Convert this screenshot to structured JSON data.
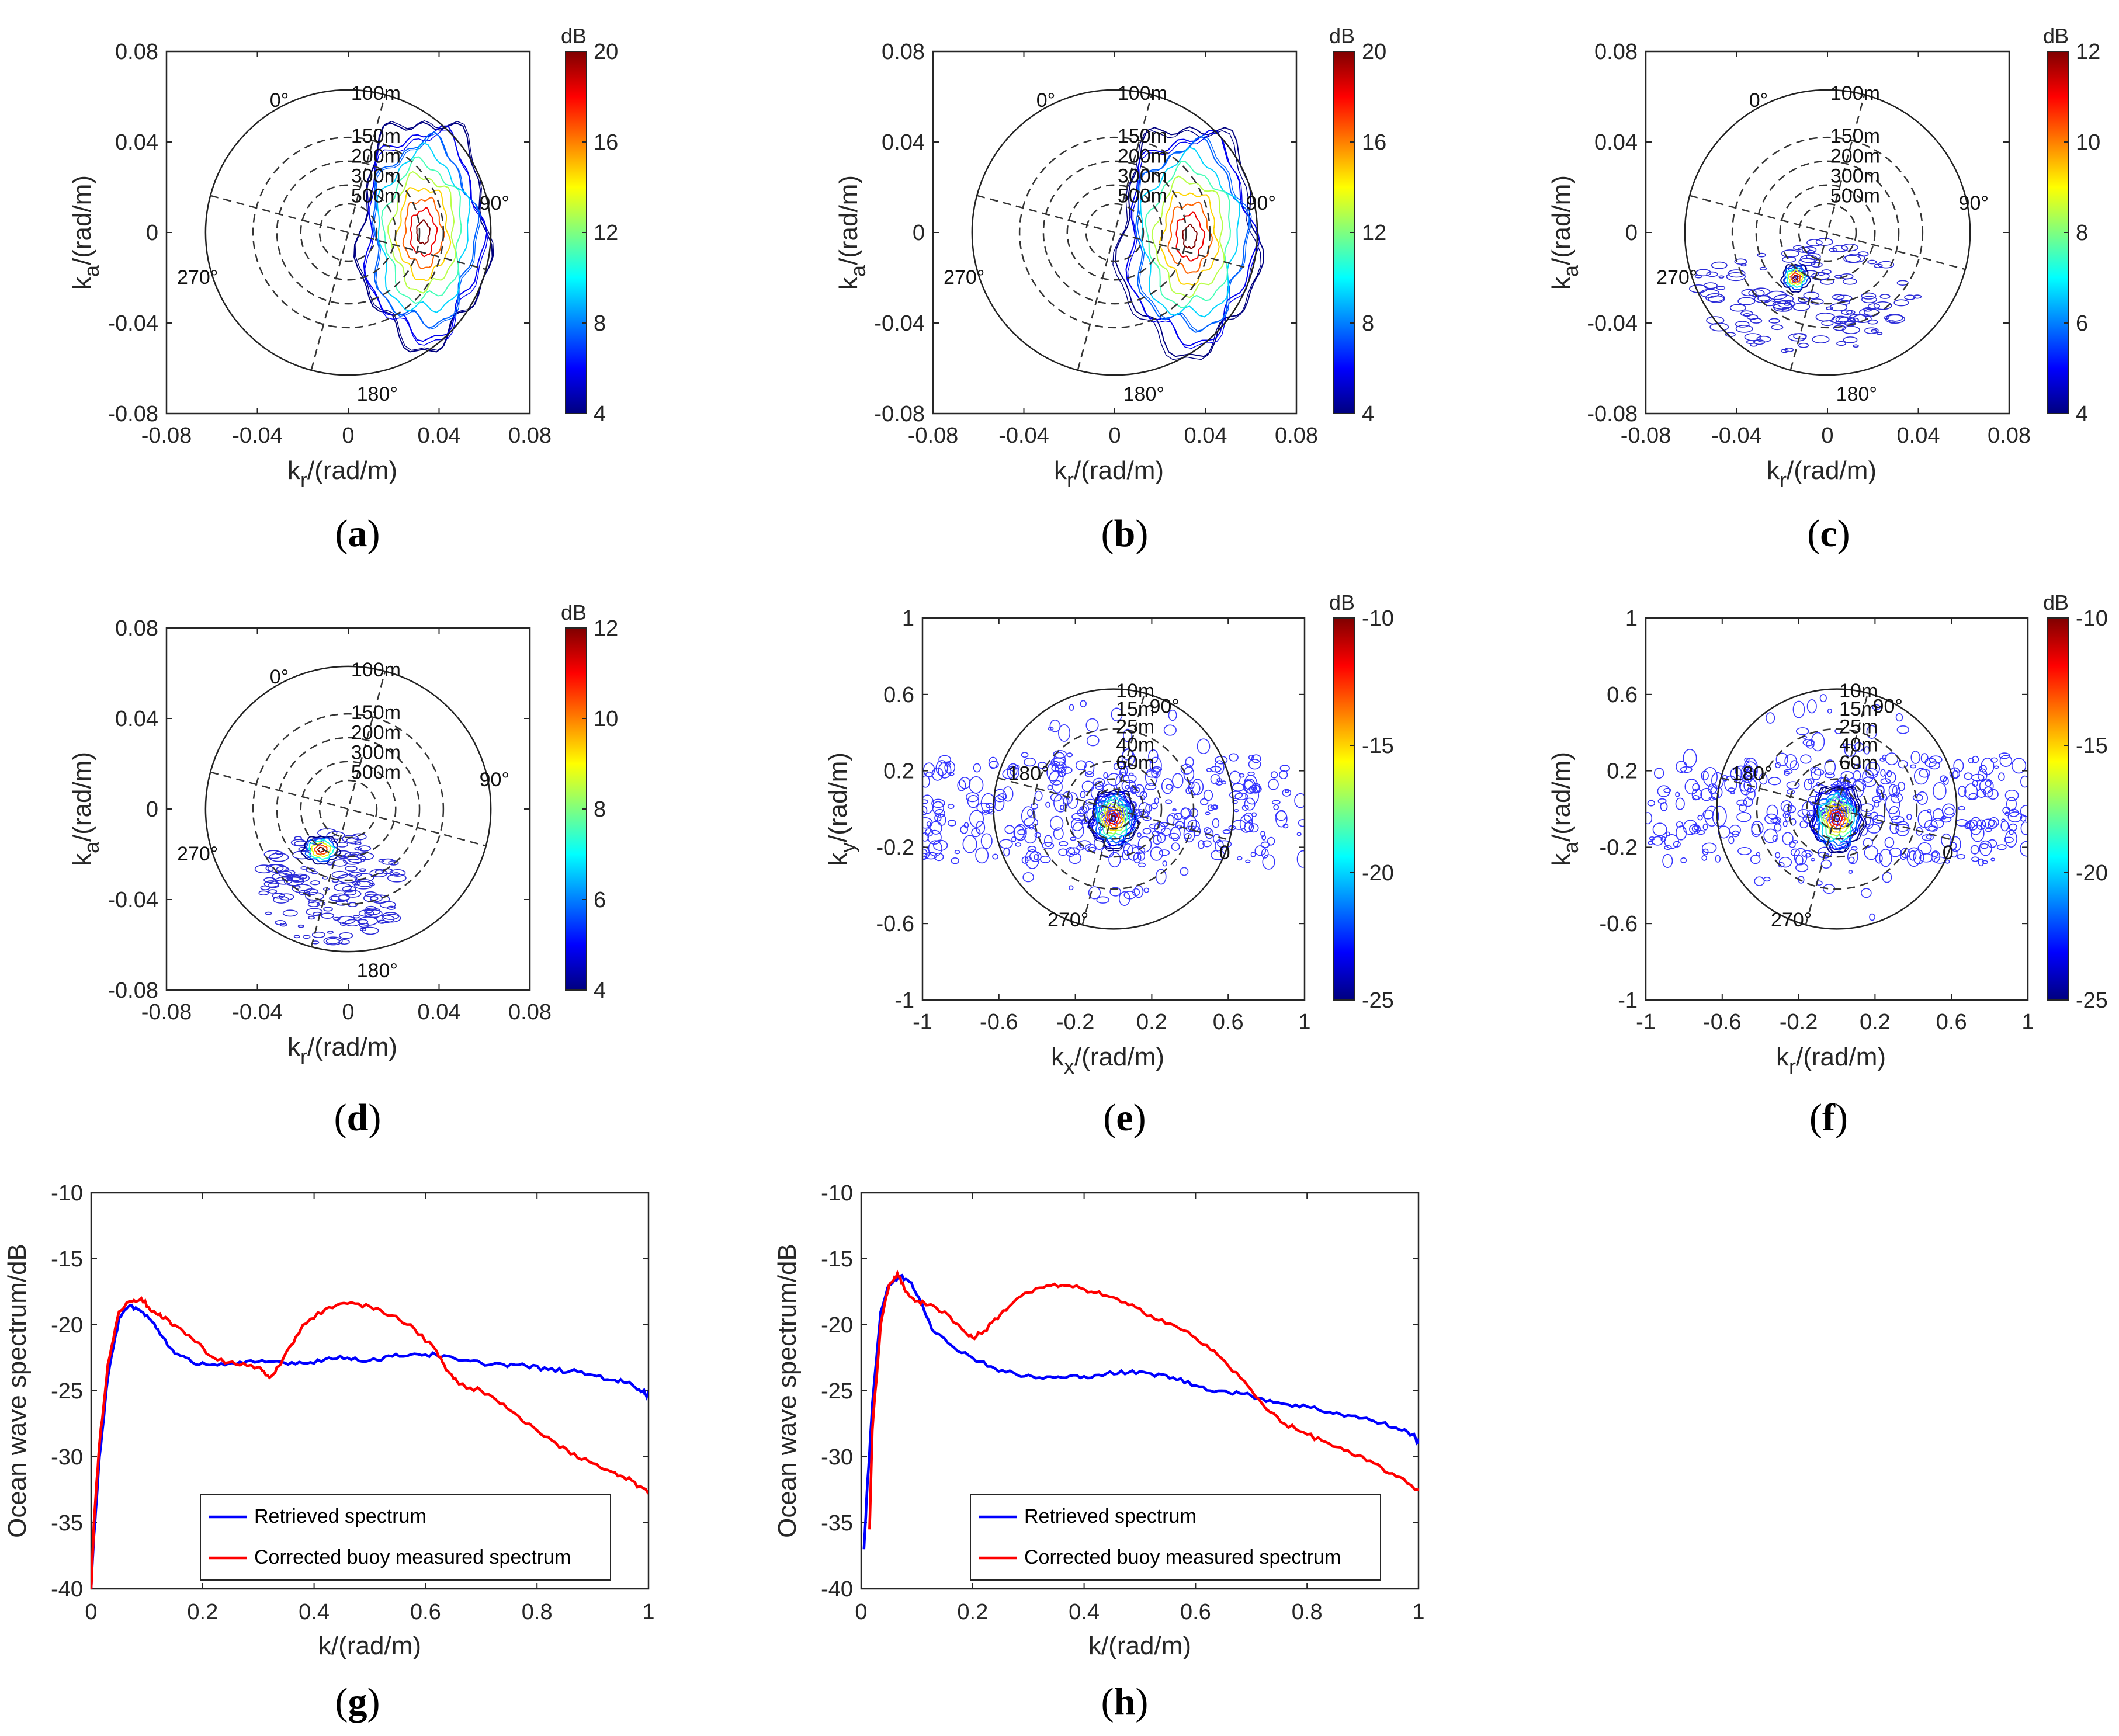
{
  "figure": {
    "colormap": [
      "#00007f",
      "#0000ff",
      "#007fff",
      "#00ffff",
      "#7fff7f",
      "#ffff00",
      "#ff7f00",
      "#ff0000",
      "#7f0000"
    ]
  },
  "chart_data": [
    {
      "id": "a",
      "type": "contour",
      "label_letter": "a",
      "xlabel_main": "k",
      "xlabel_sub": "r",
      "xlabel_tail": "/(rad/m)",
      "ylabel_main": "k",
      "ylabel_sub": "a",
      "ylabel_tail": "/(rad/m)",
      "xlim": [
        -0.08,
        0.08
      ],
      "ylim": [
        -0.08,
        0.08
      ],
      "xticks": [
        "-0.08",
        "-0.04",
        "0",
        "0.04",
        "0.08"
      ],
      "yticks": [
        "0.08",
        "0.04",
        "0",
        "-0.04",
        "-0.08"
      ],
      "colorbar": {
        "unit": "dB",
        "min": 4,
        "max": 20,
        "ticks": [
          "20",
          "16",
          "12",
          "8",
          "4"
        ]
      },
      "polar": {
        "outer_radius": 0.0628,
        "rings": [
          0.0419,
          0.0314,
          0.0209,
          0.0126
        ],
        "ring_labels": [
          "100m",
          "150m",
          "200m",
          "300m",
          "500m"
        ],
        "angle_labels": [
          "0°",
          "90°",
          "180°",
          "270°"
        ],
        "rotation_deg": 15
      },
      "blob": {
        "cx": 0.033,
        "cy": 0.0,
        "rx": 0.028,
        "ry": 0.05,
        "peak_db": 20
      }
    },
    {
      "id": "b",
      "type": "contour",
      "label_letter": "b",
      "xlabel_main": "k",
      "xlabel_sub": "r",
      "xlabel_tail": "/(rad/m)",
      "ylabel_main": "k",
      "ylabel_sub": "a",
      "ylabel_tail": "/(rad/m)",
      "xlim": [
        -0.08,
        0.08
      ],
      "ylim": [
        -0.08,
        0.08
      ],
      "xticks": [
        "-0.08",
        "-0.04",
        "0",
        "0.04",
        "0.08"
      ],
      "yticks": [
        "0.08",
        "0.04",
        "0",
        "-0.04",
        "-0.08"
      ],
      "colorbar": {
        "unit": "dB",
        "min": 4,
        "max": 20,
        "ticks": [
          "20",
          "16",
          "12",
          "8",
          "4"
        ]
      },
      "polar": {
        "outer_radius": 0.0628,
        "rings": [
          0.0419,
          0.0314,
          0.0209,
          0.0126
        ],
        "ring_labels": [
          "100m",
          "150m",
          "200m",
          "300m",
          "500m"
        ],
        "angle_labels": [
          "0°",
          "90°",
          "180°",
          "270°"
        ],
        "rotation_deg": 15
      },
      "blob": {
        "cx": 0.033,
        "cy": -0.002,
        "rx": 0.03,
        "ry": 0.05,
        "peak_db": 20
      }
    },
    {
      "id": "c",
      "type": "contour",
      "label_letter": "c",
      "xlabel_main": "k",
      "xlabel_sub": "r",
      "xlabel_tail": "/(rad/m)",
      "ylabel_main": "k",
      "ylabel_sub": "a",
      "ylabel_tail": "/(rad/m)",
      "xlim": [
        -0.08,
        0.08
      ],
      "ylim": [
        -0.08,
        0.08
      ],
      "xticks": [
        "-0.08",
        "-0.04",
        "0",
        "0.04",
        "0.08"
      ],
      "yticks": [
        "0.08",
        "0.04",
        "0",
        "-0.04",
        "-0.08"
      ],
      "colorbar": {
        "unit": "dB",
        "min": 4,
        "max": 12,
        "ticks": [
          "12",
          "10",
          "8",
          "6",
          "4"
        ]
      },
      "polar": {
        "outer_radius": 0.0628,
        "rings": [
          0.0419,
          0.0314,
          0.0209,
          0.0126
        ],
        "ring_labels": [
          "100m",
          "150m",
          "200m",
          "300m",
          "500m"
        ],
        "angle_labels": [
          "0°",
          "90°",
          "180°",
          "270°"
        ],
        "rotation_deg": 15
      },
      "blob": {
        "cx": -0.014,
        "cy": -0.02,
        "rx": 0.006,
        "ry": 0.006,
        "peak_db": 12,
        "spread": {
          "cx": -0.01,
          "cy": -0.028,
          "rx": 0.05,
          "ry": 0.025
        }
      }
    },
    {
      "id": "d",
      "type": "contour",
      "label_letter": "d",
      "xlabel_main": "k",
      "xlabel_sub": "r",
      "xlabel_tail": "/(rad/m)",
      "ylabel_main": "k",
      "ylabel_sub": "a",
      "ylabel_tail": "/(rad/m)",
      "xlim": [
        -0.08,
        0.08
      ],
      "ylim": [
        -0.08,
        0.08
      ],
      "xticks": [
        "-0.08",
        "-0.04",
        "0",
        "0.04",
        "0.08"
      ],
      "yticks": [
        "0.08",
        "0.04",
        "0",
        "-0.04",
        "-0.08"
      ],
      "colorbar": {
        "unit": "dB",
        "min": 4,
        "max": 12,
        "ticks": [
          "12",
          "10",
          "8",
          "6",
          "4"
        ]
      },
      "polar": {
        "outer_radius": 0.0628,
        "rings": [
          0.0419,
          0.0314,
          0.0209,
          0.0126
        ],
        "ring_labels": [
          "100m",
          "150m",
          "200m",
          "300m",
          "500m"
        ],
        "angle_labels": [
          "0°",
          "90°",
          "180°",
          "270°"
        ],
        "rotation_deg": 15
      },
      "blob": {
        "cx": -0.012,
        "cy": -0.018,
        "rx": 0.008,
        "ry": 0.006,
        "peak_db": 12,
        "spread": {
          "cx": -0.008,
          "cy": -0.035,
          "rx": 0.032,
          "ry": 0.025
        }
      }
    },
    {
      "id": "e",
      "type": "contour",
      "label_letter": "e",
      "xlabel_main": "k",
      "xlabel_sub": "x",
      "xlabel_tail": "/(rad/m)",
      "ylabel_main": "k",
      "ylabel_sub": "y",
      "ylabel_tail": "/(rad/m)",
      "xlim": [
        -1,
        1
      ],
      "ylim": [
        -1,
        1
      ],
      "xticks": [
        "-1",
        "-0.6",
        "-0.2",
        "0.2",
        "0.6",
        "1"
      ],
      "yticks": [
        "1",
        "0.6",
        "0.2",
        "-0.2",
        "-0.6",
        "-1"
      ],
      "colorbar": {
        "unit": "dB",
        "min": -25,
        "max": -10,
        "ticks": [
          "-10",
          "-15",
          "-20",
          "-25"
        ]
      },
      "polar": {
        "outer_radius": 0.628,
        "rings": [
          0.419,
          0.251,
          0.157,
          0.105
        ],
        "ring_labels": [
          "10m",
          "15m",
          "25m",
          "40m",
          "60m"
        ],
        "angle_labels": [
          "90°",
          "180°",
          "270°",
          "0"
        ],
        "rotation_deg": 15
      },
      "blob": {
        "cx": 0.0,
        "cy": -0.05,
        "rx": 0.12,
        "ry": 0.15,
        "peak_db": -10
      }
    },
    {
      "id": "f",
      "type": "contour",
      "label_letter": "f",
      "xlabel_main": "k",
      "xlabel_sub": "r",
      "xlabel_tail": "/(rad/m)",
      "ylabel_main": "k",
      "ylabel_sub": "a",
      "ylabel_tail": "/(rad/m)",
      "xlim": [
        -1,
        1
      ],
      "ylim": [
        -1,
        1
      ],
      "xticks": [
        "-1",
        "-0.6",
        "-0.2",
        "0.2",
        "0.6",
        "1"
      ],
      "yticks": [
        "1",
        "0.6",
        "0.2",
        "-0.2",
        "-0.6",
        "-1"
      ],
      "colorbar": {
        "unit": "dB",
        "min": -25,
        "max": -10,
        "ticks": [
          "-10",
          "-15",
          "-20",
          "-25"
        ]
      },
      "polar": {
        "outer_radius": 0.628,
        "rings": [
          0.419,
          0.251,
          0.157,
          0.105
        ],
        "ring_labels": [
          "10m",
          "15m",
          "25m",
          "40m",
          "60m"
        ],
        "angle_labels": [
          "90°",
          "180°",
          "270°",
          "0"
        ],
        "rotation_deg": 15
      },
      "blob": {
        "cx": 0.0,
        "cy": -0.05,
        "rx": 0.13,
        "ry": 0.17,
        "peak_db": -10
      }
    },
    {
      "id": "g",
      "type": "line",
      "label_letter": "g",
      "xlabel": "k/(rad/m)",
      "ylabel": "Ocean wave spectrum/dB",
      "xlim": [
        0,
        1
      ],
      "ylim": [
        -40,
        -10
      ],
      "xticks": [
        "0",
        "0.2",
        "0.4",
        "0.6",
        "0.8",
        "1"
      ],
      "yticks": [
        "-10",
        "-15",
        "-20",
        "-25",
        "-30",
        "-35",
        "-40"
      ],
      "legend": [
        "Retrieved spectrum",
        "Corrected  buoy measured spectrum"
      ],
      "series": [
        {
          "name": "Retrieved spectrum",
          "color": "#0000ff",
          "points": [
            [
              0,
              -40
            ],
            [
              0.005,
              -36
            ],
            [
              0.015,
              -30
            ],
            [
              0.03,
              -24
            ],
            [
              0.05,
              -19.5
            ],
            [
              0.07,
              -18.5
            ],
            [
              0.09,
              -19
            ],
            [
              0.11,
              -19.8
            ],
            [
              0.13,
              -21
            ],
            [
              0.15,
              -22.2
            ],
            [
              0.18,
              -22.8
            ],
            [
              0.22,
              -23
            ],
            [
              0.26,
              -23
            ],
            [
              0.3,
              -22.8
            ],
            [
              0.34,
              -22.8
            ],
            [
              0.38,
              -22.9
            ],
            [
              0.42,
              -22.6
            ],
            [
              0.46,
              -22.5
            ],
            [
              0.5,
              -22.7
            ],
            [
              0.54,
              -22.4
            ],
            [
              0.58,
              -22.2
            ],
            [
              0.62,
              -22.3
            ],
            [
              0.66,
              -22.7
            ],
            [
              0.7,
              -22.9
            ],
            [
              0.74,
              -23
            ],
            [
              0.78,
              -23.1
            ],
            [
              0.82,
              -23.4
            ],
            [
              0.86,
              -23.5
            ],
            [
              0.9,
              -23.8
            ],
            [
              0.94,
              -24.2
            ],
            [
              0.97,
              -24.5
            ],
            [
              0.99,
              -25
            ],
            [
              1,
              -25.5
            ]
          ]
        },
        {
          "name": "Corrected  buoy measured spectrum",
          "color": "#ff0000",
          "points": [
            [
              0,
              -40
            ],
            [
              0.005,
              -35
            ],
            [
              0.015,
              -29
            ],
            [
              0.03,
              -23
            ],
            [
              0.05,
              -19
            ],
            [
              0.07,
              -18.2
            ],
            [
              0.09,
              -18
            ],
            [
              0.11,
              -19
            ],
            [
              0.13,
              -19.5
            ],
            [
              0.15,
              -20
            ],
            [
              0.18,
              -21
            ],
            [
              0.22,
              -22.5
            ],
            [
              0.26,
              -23
            ],
            [
              0.3,
              -23.2
            ],
            [
              0.32,
              -24
            ],
            [
              0.34,
              -23
            ],
            [
              0.36,
              -21.5
            ],
            [
              0.38,
              -20
            ],
            [
              0.42,
              -18.8
            ],
            [
              0.46,
              -18.4
            ],
            [
              0.5,
              -18.6
            ],
            [
              0.54,
              -19.3
            ],
            [
              0.58,
              -20.3
            ],
            [
              0.62,
              -22
            ],
            [
              0.64,
              -23.5
            ],
            [
              0.66,
              -24.5
            ],
            [
              0.7,
              -25
            ],
            [
              0.74,
              -26
            ],
            [
              0.78,
              -27.5
            ],
            [
              0.82,
              -28.5
            ],
            [
              0.86,
              -29.8
            ],
            [
              0.9,
              -30.5
            ],
            [
              0.94,
              -31.2
            ],
            [
              0.97,
              -31.8
            ],
            [
              1,
              -32.8
            ]
          ]
        }
      ]
    },
    {
      "id": "h",
      "type": "line",
      "label_letter": "h",
      "xlabel": "k/(rad/m)",
      "ylabel": "Ocean wave spectrum/dB",
      "xlim": [
        0,
        1
      ],
      "ylim": [
        -40,
        -10
      ],
      "xticks": [
        "0",
        "0.2",
        "0.4",
        "0.6",
        "0.8",
        "1"
      ],
      "yticks": [
        "-10",
        "-15",
        "-20",
        "-25",
        "-30",
        "-35",
        "-40"
      ],
      "legend": [
        "Retrieved spectrum",
        "Corrected  buoy measured spectrum"
      ],
      "series": [
        {
          "name": "Retrieved spectrum",
          "color": "#0000ff",
          "points": [
            [
              0.005,
              -37
            ],
            [
              0.01,
              -33
            ],
            [
              0.02,
              -26
            ],
            [
              0.035,
              -19
            ],
            [
              0.05,
              -17
            ],
            [
              0.07,
              -16.3
            ],
            [
              0.09,
              -16.8
            ],
            [
              0.11,
              -18.5
            ],
            [
              0.13,
              -20.5
            ],
            [
              0.16,
              -21.5
            ],
            [
              0.2,
              -22.5
            ],
            [
              0.24,
              -23.3
            ],
            [
              0.28,
              -23.8
            ],
            [
              0.32,
              -24
            ],
            [
              0.36,
              -24
            ],
            [
              0.4,
              -23.9
            ],
            [
              0.44,
              -23.7
            ],
            [
              0.48,
              -23.6
            ],
            [
              0.52,
              -23.7
            ],
            [
              0.56,
              -24
            ],
            [
              0.6,
              -24.6
            ],
            [
              0.64,
              -25
            ],
            [
              0.68,
              -25.2
            ],
            [
              0.72,
              -25.6
            ],
            [
              0.76,
              -26
            ],
            [
              0.8,
              -26.2
            ],
            [
              0.84,
              -26.6
            ],
            [
              0.88,
              -26.9
            ],
            [
              0.92,
              -27.3
            ],
            [
              0.96,
              -27.8
            ],
            [
              0.99,
              -28.3
            ],
            [
              1,
              -29
            ]
          ]
        },
        {
          "name": "Corrected  buoy measured spectrum",
          "color": "#ff0000",
          "points": [
            [
              0.015,
              -35.5
            ],
            [
              0.02,
              -28
            ],
            [
              0.035,
              -20
            ],
            [
              0.05,
              -17
            ],
            [
              0.065,
              -16.1
            ],
            [
              0.08,
              -17.5
            ],
            [
              0.1,
              -18.2
            ],
            [
              0.12,
              -18.5
            ],
            [
              0.15,
              -19
            ],
            [
              0.18,
              -20.3
            ],
            [
              0.2,
              -21
            ],
            [
              0.22,
              -20.5
            ],
            [
              0.25,
              -19.2
            ],
            [
              0.28,
              -18
            ],
            [
              0.32,
              -17.2
            ],
            [
              0.36,
              -17
            ],
            [
              0.4,
              -17.3
            ],
            [
              0.44,
              -17.8
            ],
            [
              0.48,
              -18.5
            ],
            [
              0.52,
              -19.3
            ],
            [
              0.56,
              -20
            ],
            [
              0.6,
              -21
            ],
            [
              0.64,
              -22.3
            ],
            [
              0.68,
              -24
            ],
            [
              0.72,
              -26
            ],
            [
              0.76,
              -27.5
            ],
            [
              0.8,
              -28.3
            ],
            [
              0.84,
              -29
            ],
            [
              0.88,
              -29.8
            ],
            [
              0.92,
              -30.5
            ],
            [
              0.96,
              -31.5
            ],
            [
              1,
              -32.5
            ]
          ]
        }
      ]
    }
  ]
}
